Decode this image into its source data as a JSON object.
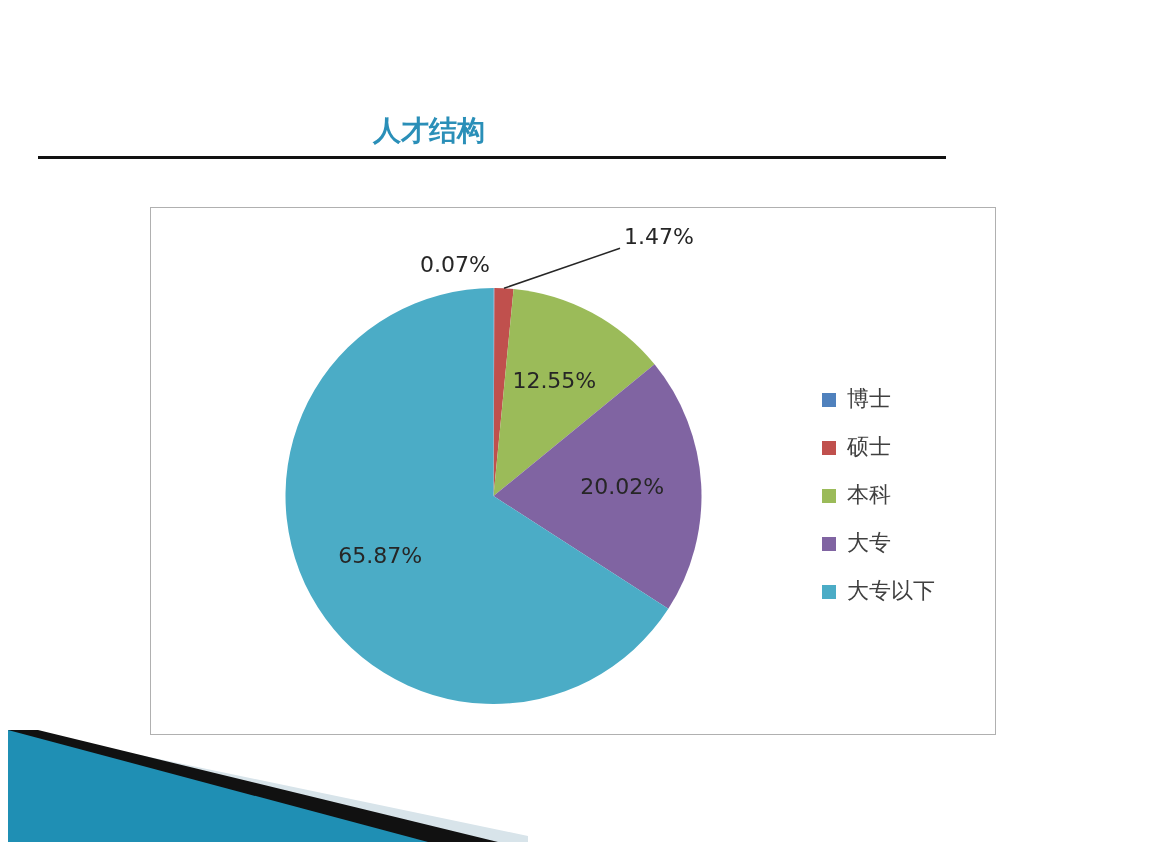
{
  "chart_data": {
    "type": "pie",
    "title": "人才结构",
    "categories": [
      "博士",
      "硕士",
      "本科",
      "大专",
      "大专以下"
    ],
    "values": [
      0.07,
      1.47,
      12.55,
      20.02,
      65.87
    ],
    "colors": [
      "#4f81bd",
      "#c0504d",
      "#9bbb59",
      "#8064a2",
      "#4bacc6"
    ],
    "value_labels": [
      "0.07%",
      "1.47%",
      "12.55%",
      "20.02%",
      "65.87%"
    ],
    "legend": "right"
  }
}
